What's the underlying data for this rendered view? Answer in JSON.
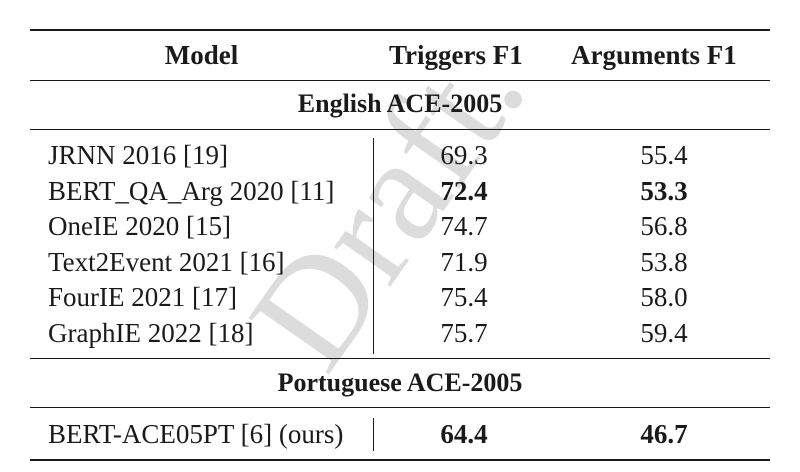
{
  "header": {
    "model": "Model",
    "triggers": "Triggers F1",
    "arguments": "Arguments F1"
  },
  "sections": [
    {
      "title": "English ACE-2005",
      "rows": [
        {
          "model": "JRNN 2016 [19]",
          "triggers": "69.3",
          "arguments": "55.4"
        },
        {
          "model": "BERT_QA_Arg 2020 [11]",
          "triggers": "72.4",
          "arguments": "53.3",
          "bold": true
        },
        {
          "model": "OneIE 2020 [15]",
          "triggers": "74.7",
          "arguments": "56.8"
        },
        {
          "model": "Text2Event 2021 [16]",
          "triggers": "71.9",
          "arguments": "53.8"
        },
        {
          "model": "FourIE 2021 [17]",
          "triggers": "75.4",
          "arguments": "58.0"
        },
        {
          "model": "GraphIE 2022 [18]",
          "triggers": "75.7",
          "arguments": "59.4"
        }
      ]
    },
    {
      "title": "Portuguese ACE-2005",
      "rows": [
        {
          "model": "BERT-ACE05PT [6] (ours)",
          "triggers": "64.4",
          "arguments": "46.7",
          "bold": true
        }
      ]
    }
  ],
  "watermark": "Draft."
}
